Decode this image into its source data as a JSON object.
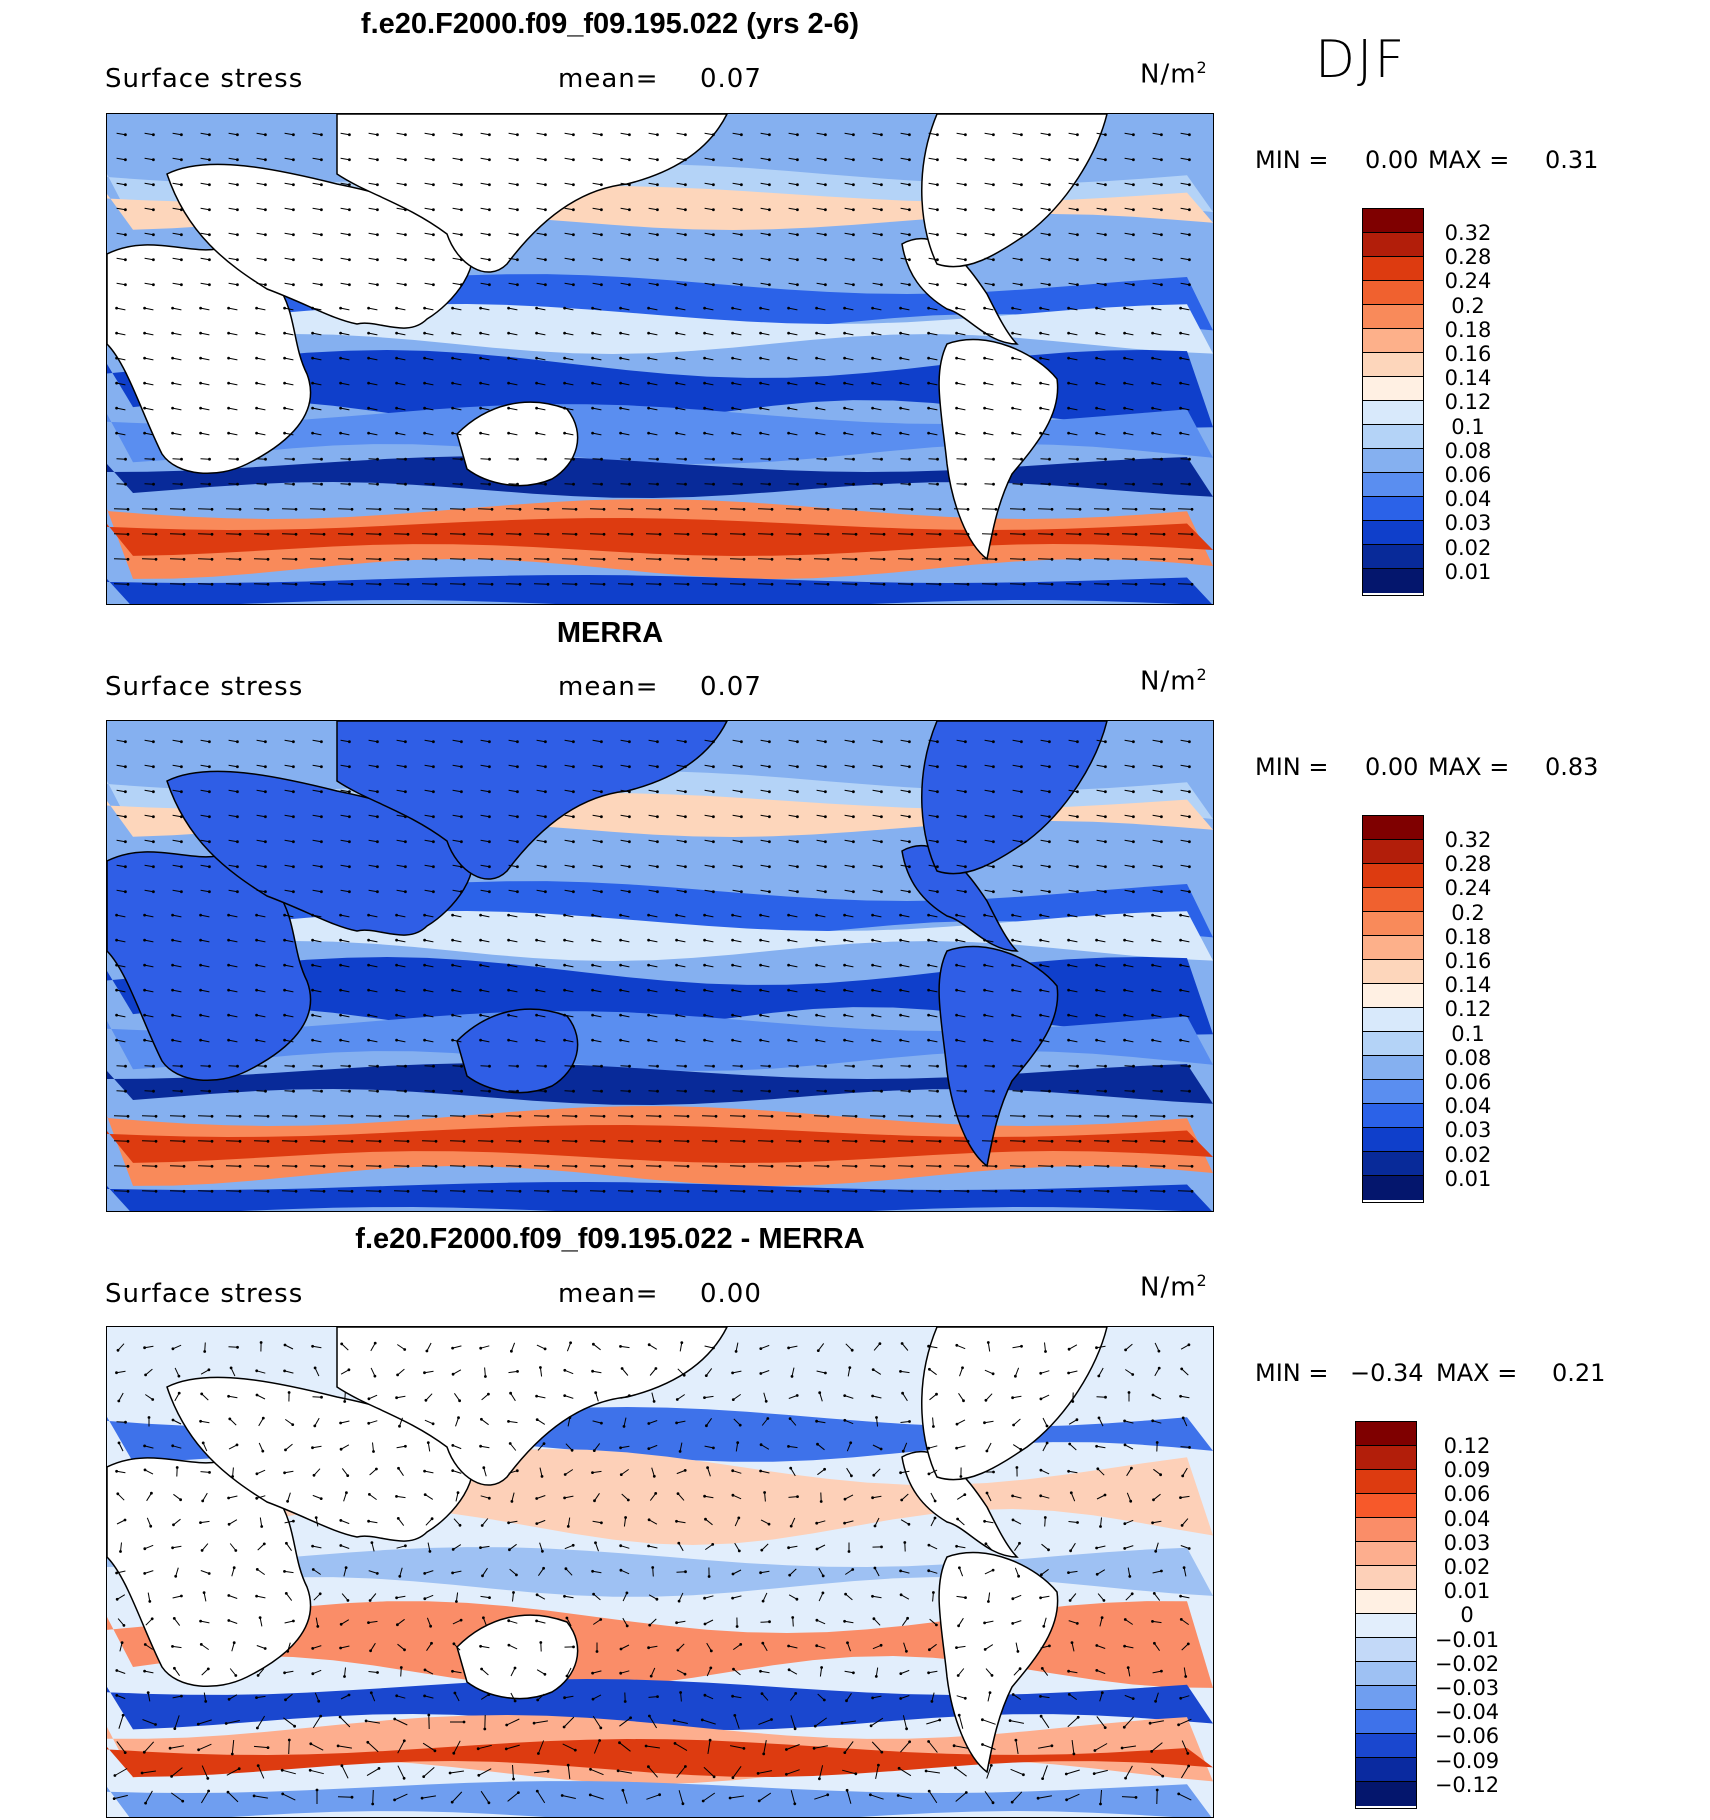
{
  "season": "DJF",
  "panels": [
    {
      "title": "f.e20.F2000.f09_f09.195.022 (yrs 2-6)",
      "field": "Surface stress",
      "mean_label": "mean=",
      "mean_value": "0.07",
      "units": "N/m",
      "units_exp": "2",
      "min_label": "MIN =",
      "min_value": "0.00",
      "max_label": "MAX =",
      "max_value": "0.31",
      "levels": [
        "0.32",
        "0.28",
        "0.24",
        "0.2",
        "0.18",
        "0.16",
        "0.14",
        "0.12",
        "0.1",
        "0.08",
        "0.06",
        "0.04",
        "0.03",
        "0.02",
        "0.01"
      ]
    },
    {
      "title": "MERRA",
      "field": "Surface stress",
      "mean_label": "mean=",
      "mean_value": "0.07",
      "units": "N/m",
      "units_exp": "2",
      "min_label": "MIN =",
      "min_value": "0.00",
      "max_label": "MAX =",
      "max_value": "0.83",
      "levels": [
        "0.32",
        "0.28",
        "0.24",
        "0.2",
        "0.18",
        "0.16",
        "0.14",
        "0.12",
        "0.1",
        "0.08",
        "0.06",
        "0.04",
        "0.03",
        "0.02",
        "0.01"
      ]
    },
    {
      "title": "f.e20.F2000.f09_f09.195.022 - MERRA",
      "field": "Surface stress",
      "mean_label": "mean=",
      "mean_value": "0.00",
      "units": "N/m",
      "units_exp": "2",
      "min_label": "MIN =",
      "min_value": "−0.34",
      "max_label": "MAX =",
      "max_value": "0.21",
      "levels": [
        "0.12",
        "0.09",
        "0.06",
        "0.04",
        "0.03",
        "0.02",
        "0.01",
        "0",
        "−0.01",
        "−0.02",
        "−0.03",
        "−0.04",
        "−0.06",
        "−0.09",
        "−0.12"
      ]
    }
  ],
  "colors": {
    "seq": [
      "#7f0000",
      "#b21e0a",
      "#dd3b10",
      "#f0612f",
      "#f98a5a",
      "#fdb08a",
      "#fdd6bb",
      "#fff0e3",
      "#d8e9fb",
      "#b4d3f7",
      "#85b0f0",
      "#5a8ef0",
      "#2b62e8",
      "#0f3fcb",
      "#082a99",
      "#04166d"
    ],
    "div": [
      "#7f0000",
      "#b21e0a",
      "#dd3b10",
      "#f7592a",
      "#fa8d68",
      "#fdae8e",
      "#fdd0b8",
      "#fff0e3",
      "#e2eefc",
      "#c3d9f8",
      "#9ec1f3",
      "#6f9ef0",
      "#3e72ea",
      "#1a47cf",
      "#0a2aa0",
      "#04166d"
    ]
  }
}
